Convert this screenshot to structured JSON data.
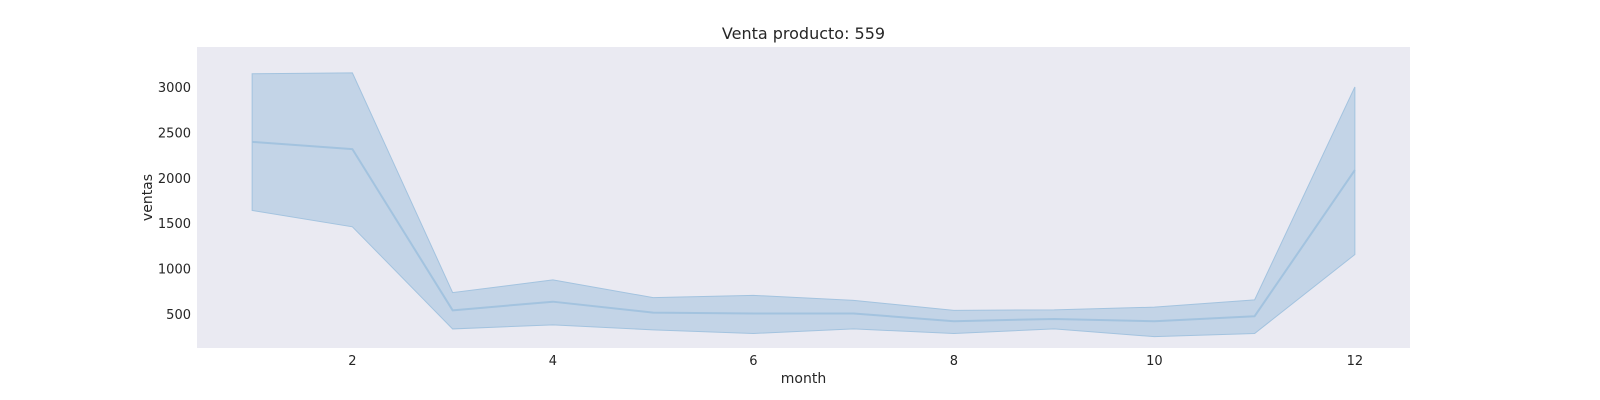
{
  "chart_data": {
    "type": "line",
    "title": "Venta producto: 559",
    "xlabel": "month",
    "ylabel": "ventas",
    "x": [
      1,
      2,
      3,
      4,
      5,
      6,
      7,
      8,
      9,
      10,
      11,
      12
    ],
    "series": [
      {
        "values": [
          2395,
          2315,
          540,
          635,
          515,
          505,
          505,
          420,
          445,
          420,
          475,
          2085
        ],
        "ci_lower": [
          1640,
          1460,
          335,
          380,
          325,
          285,
          335,
          285,
          335,
          250,
          285,
          1155
        ],
        "ci_upper": [
          3145,
          3155,
          735,
          875,
          680,
          705,
          650,
          540,
          545,
          575,
          655,
          3000
        ]
      }
    ],
    "xlim": [
      0.45,
      12.55
    ],
    "ylim": [
      125,
      3440
    ],
    "xticks": [
      2,
      4,
      6,
      8,
      10,
      12
    ],
    "yticks": [
      500,
      1000,
      1500,
      2000,
      2500,
      3000
    ],
    "grid": false,
    "colors": {
      "line": "#a3c3df",
      "band": "#adc7e0",
      "plot_bg": "#eaeaf2",
      "text": "#262626"
    }
  }
}
